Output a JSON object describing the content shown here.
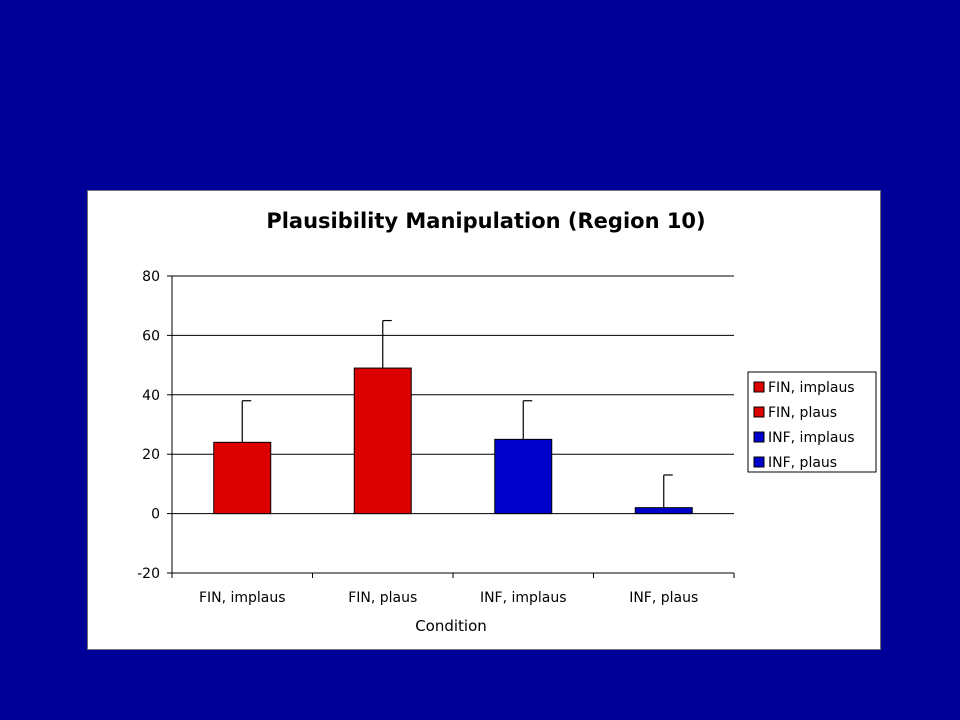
{
  "chart_data": {
    "type": "bar",
    "title": "Plausibility Manipulation (Region 10)",
    "xlabel": "Condition",
    "ylabel": "",
    "ylim": [
      -20,
      80
    ],
    "yticks": [
      -20,
      0,
      20,
      40,
      60,
      80
    ],
    "categories": [
      "FIN, implaus",
      "FIN, plaus",
      "INF, implaus",
      "INF, plaus"
    ],
    "series": [
      {
        "name": "FIN, implaus",
        "color": "#dd0000",
        "values": [
          24,
          null,
          null,
          null
        ],
        "error": [
          14,
          null,
          null,
          null
        ]
      },
      {
        "name": "FIN, plaus",
        "color": "#dd0000",
        "values": [
          null,
          49,
          null,
          null
        ],
        "error": [
          null,
          16,
          null,
          null
        ]
      },
      {
        "name": "INF, implaus",
        "color": "#0000cc",
        "values": [
          null,
          null,
          25,
          null
        ],
        "error": [
          null,
          null,
          13,
          null
        ]
      },
      {
        "name": "INF, plaus",
        "color": "#0000cc",
        "values": [
          null,
          null,
          null,
          2
        ],
        "error": [
          null,
          null,
          null,
          11
        ]
      }
    ],
    "grid": true,
    "legend_position": "right"
  },
  "colors": {
    "background": "#000099",
    "panel": "#ffffff"
  }
}
